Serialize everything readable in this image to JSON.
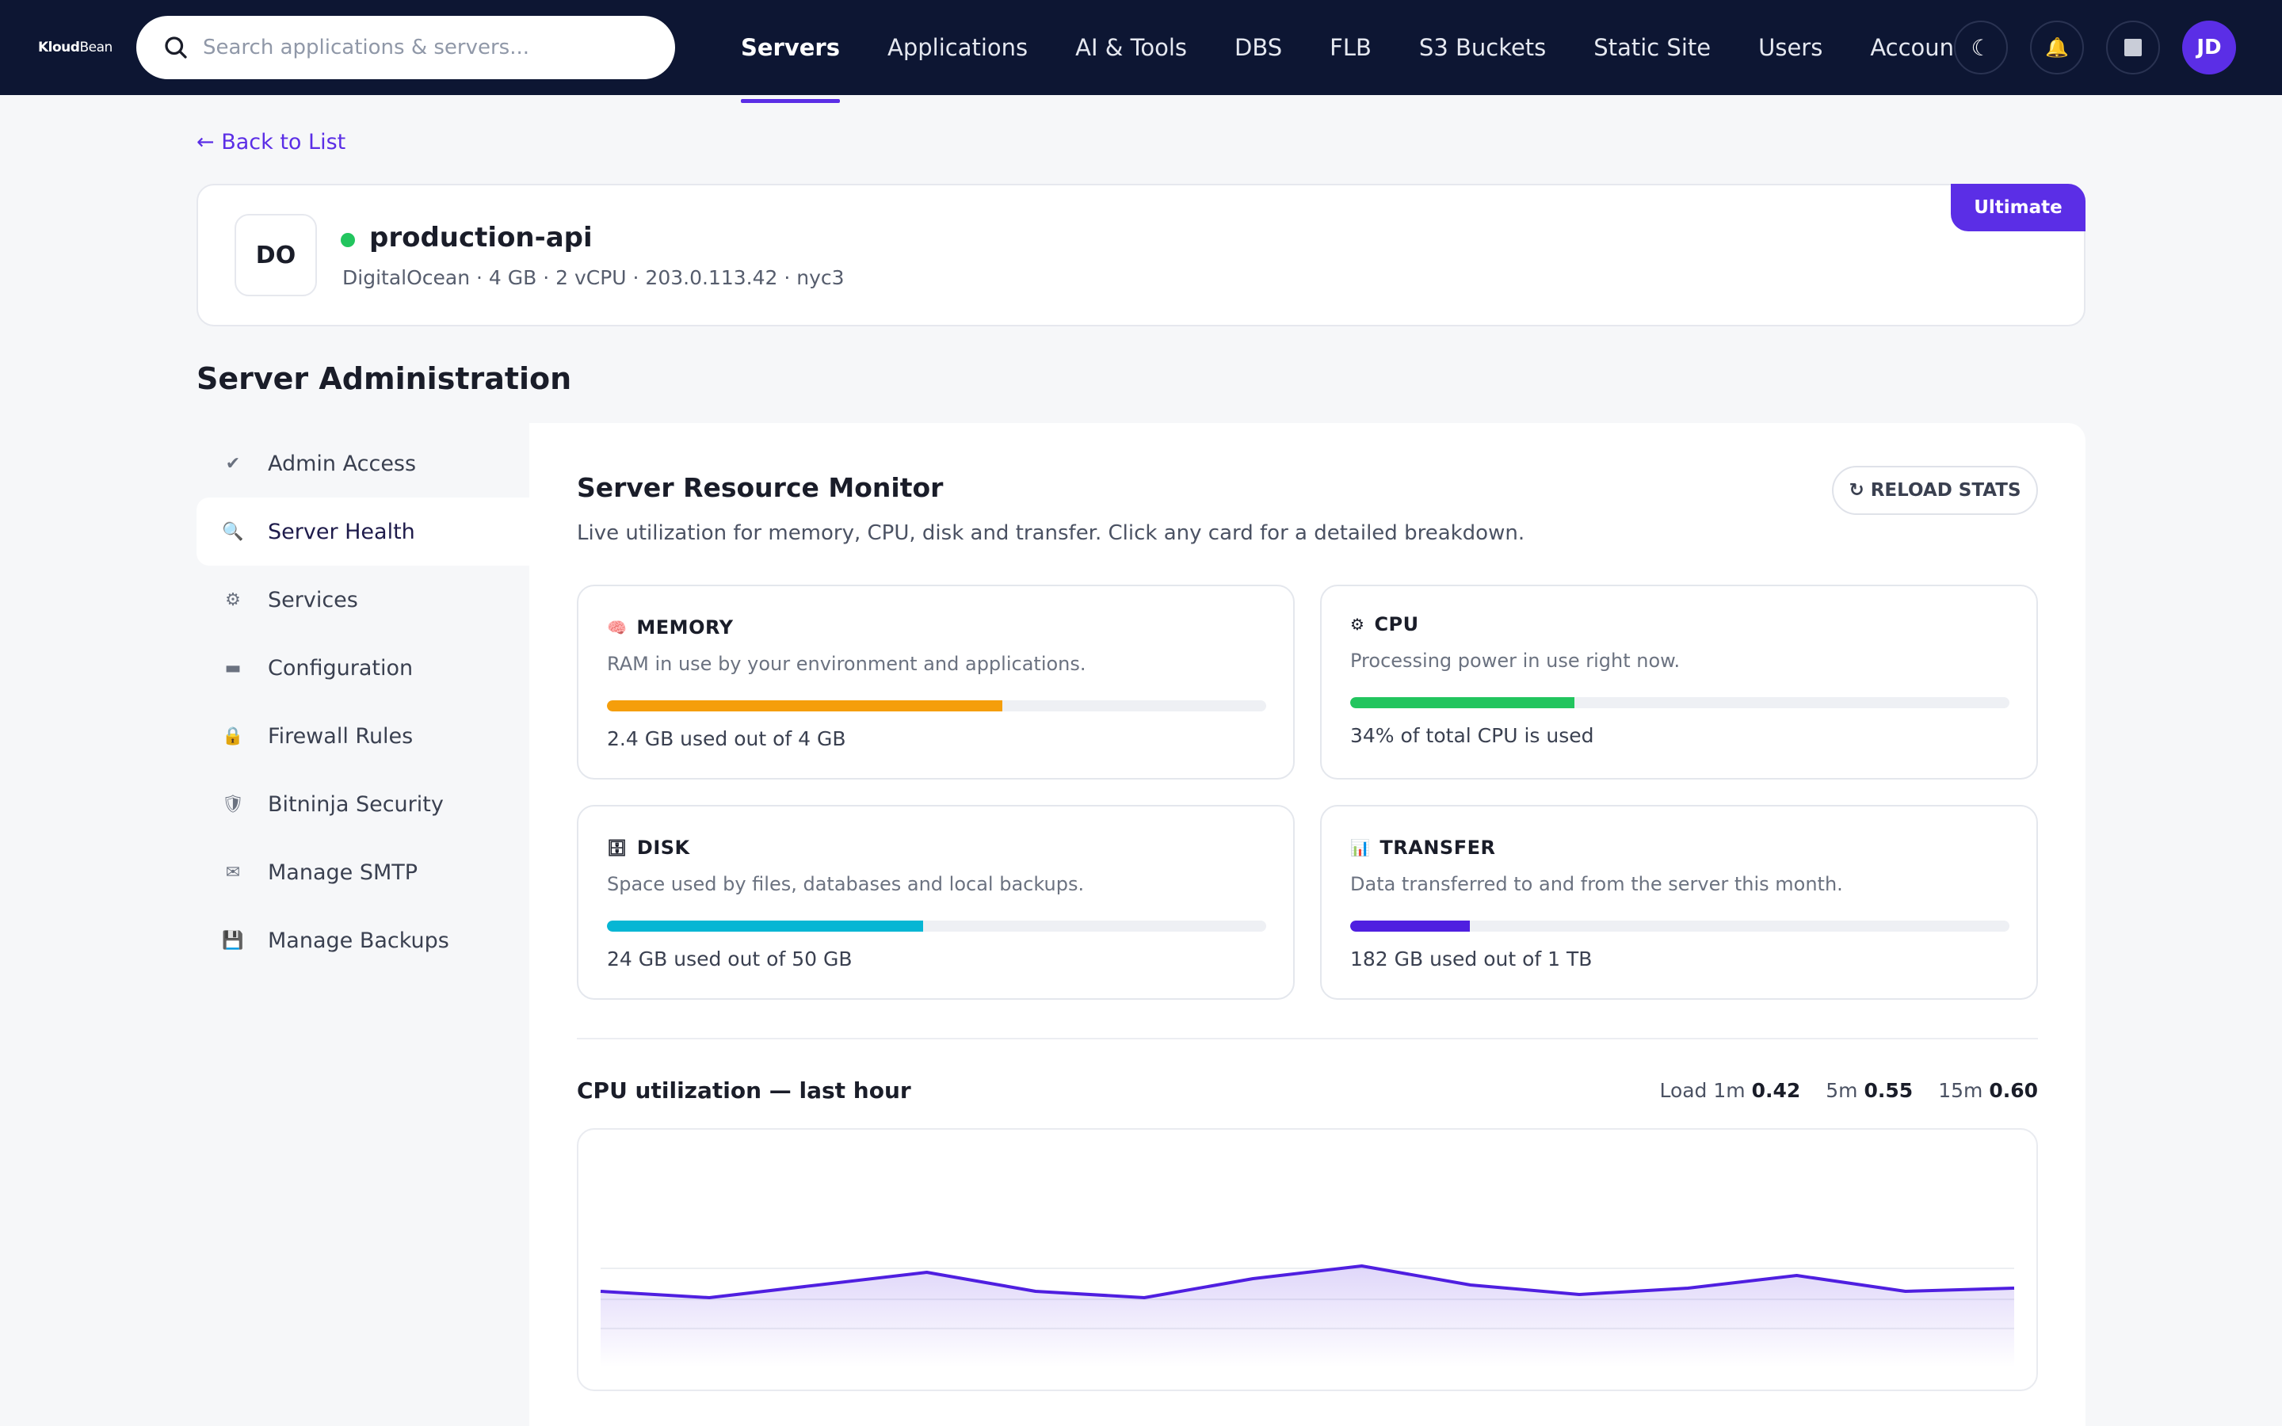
{
  "brand": {
    "logo_bold": "Kloud",
    "logo_thin": "Bean"
  },
  "search": {
    "placeholder": "Search applications & servers..."
  },
  "nav": [
    "Servers",
    "Applications",
    "AI & Tools",
    "DBS",
    "FLB",
    "S3 Buckets",
    "Static Site",
    "Users",
    "Account"
  ],
  "nav_active": "Servers",
  "top_icons": {
    "theme": "☾",
    "notifications": "🔔",
    "avatar": "JD"
  },
  "back_link": "← Back to List",
  "server": {
    "initials": "DO",
    "name": "production-api",
    "meta": "DigitalOcean · 4 GB · 2 vCPU · 203.0.113.42 · nyc3",
    "status_color": "#22c55e",
    "plan": "Ultimate"
  },
  "section_title": "Server Administration",
  "sidebar": [
    {
      "icon": "✔",
      "icon_name": "check-icon",
      "label": "Admin Access"
    },
    {
      "icon": "🔍",
      "icon_name": "magnifier-icon",
      "label": "Server Health",
      "active": true
    },
    {
      "icon": "⚙",
      "icon_name": "gear-icon",
      "label": "Services"
    },
    {
      "icon": "▬",
      "icon_name": "config-icon",
      "label": "Configuration"
    },
    {
      "icon": "🔒",
      "icon_name": "lock-icon",
      "label": "Firewall Rules"
    },
    {
      "icon": "🛡",
      "icon_name": "shield-icon",
      "label": "Bitninja Security"
    },
    {
      "icon": "✉",
      "icon_name": "mail-icon",
      "label": "Manage SMTP"
    },
    {
      "icon": "💾",
      "icon_name": "floppy-icon",
      "label": "Manage Backups"
    }
  ],
  "monitor": {
    "title": "Server Resource Monitor",
    "reload_label": "↻ RELOAD STATS",
    "description": "Live utilization for memory, CPU, disk and transfer. Click any card for a detailed breakdown.",
    "cards": {
      "memory": {
        "icon": "🧠",
        "title": "MEMORY",
        "desc": "RAM in use by your environment and applications.",
        "usage": "2.4 GB used out of 4 GB",
        "fraction": 0.6,
        "color": "#f59e0b"
      },
      "cpu": {
        "icon": "⚙",
        "title": "CPU",
        "desc": "Processing power in use right now.",
        "usage": "34% of total CPU is used",
        "fraction": 0.34,
        "color": "#22c55e"
      },
      "disk": {
        "icon": "🗄",
        "title": "DISK",
        "desc": "Space used by files, databases and local backups.",
        "usage": "24 GB used out of 50 GB",
        "fraction": 0.48,
        "color": "#06b6d4"
      },
      "transfer": {
        "icon": "📊",
        "title": "TRANSFER",
        "desc": "Data transferred to and from the server this month.",
        "usage": "182 GB used out of 1 TB",
        "fraction": 0.182,
        "color": "#4f1fe0"
      }
    }
  },
  "cpu_chart": {
    "title": "CPU utilization — last hour",
    "load_1m_label": "Load 1m",
    "load_1m": "0.42",
    "load_5m_label": "5m",
    "load_5m": "0.55",
    "load_15m_label": "15m",
    "load_15m": "0.60"
  },
  "chart_data": {
    "type": "area",
    "title": "CPU utilization — last hour",
    "values": [
      34,
      32,
      36,
      40,
      34,
      32,
      38,
      42,
      36,
      33,
      35,
      39,
      34,
      35
    ],
    "ylim": [
      0,
      100
    ],
    "color": "#4f1fe0",
    "grid": true
  }
}
